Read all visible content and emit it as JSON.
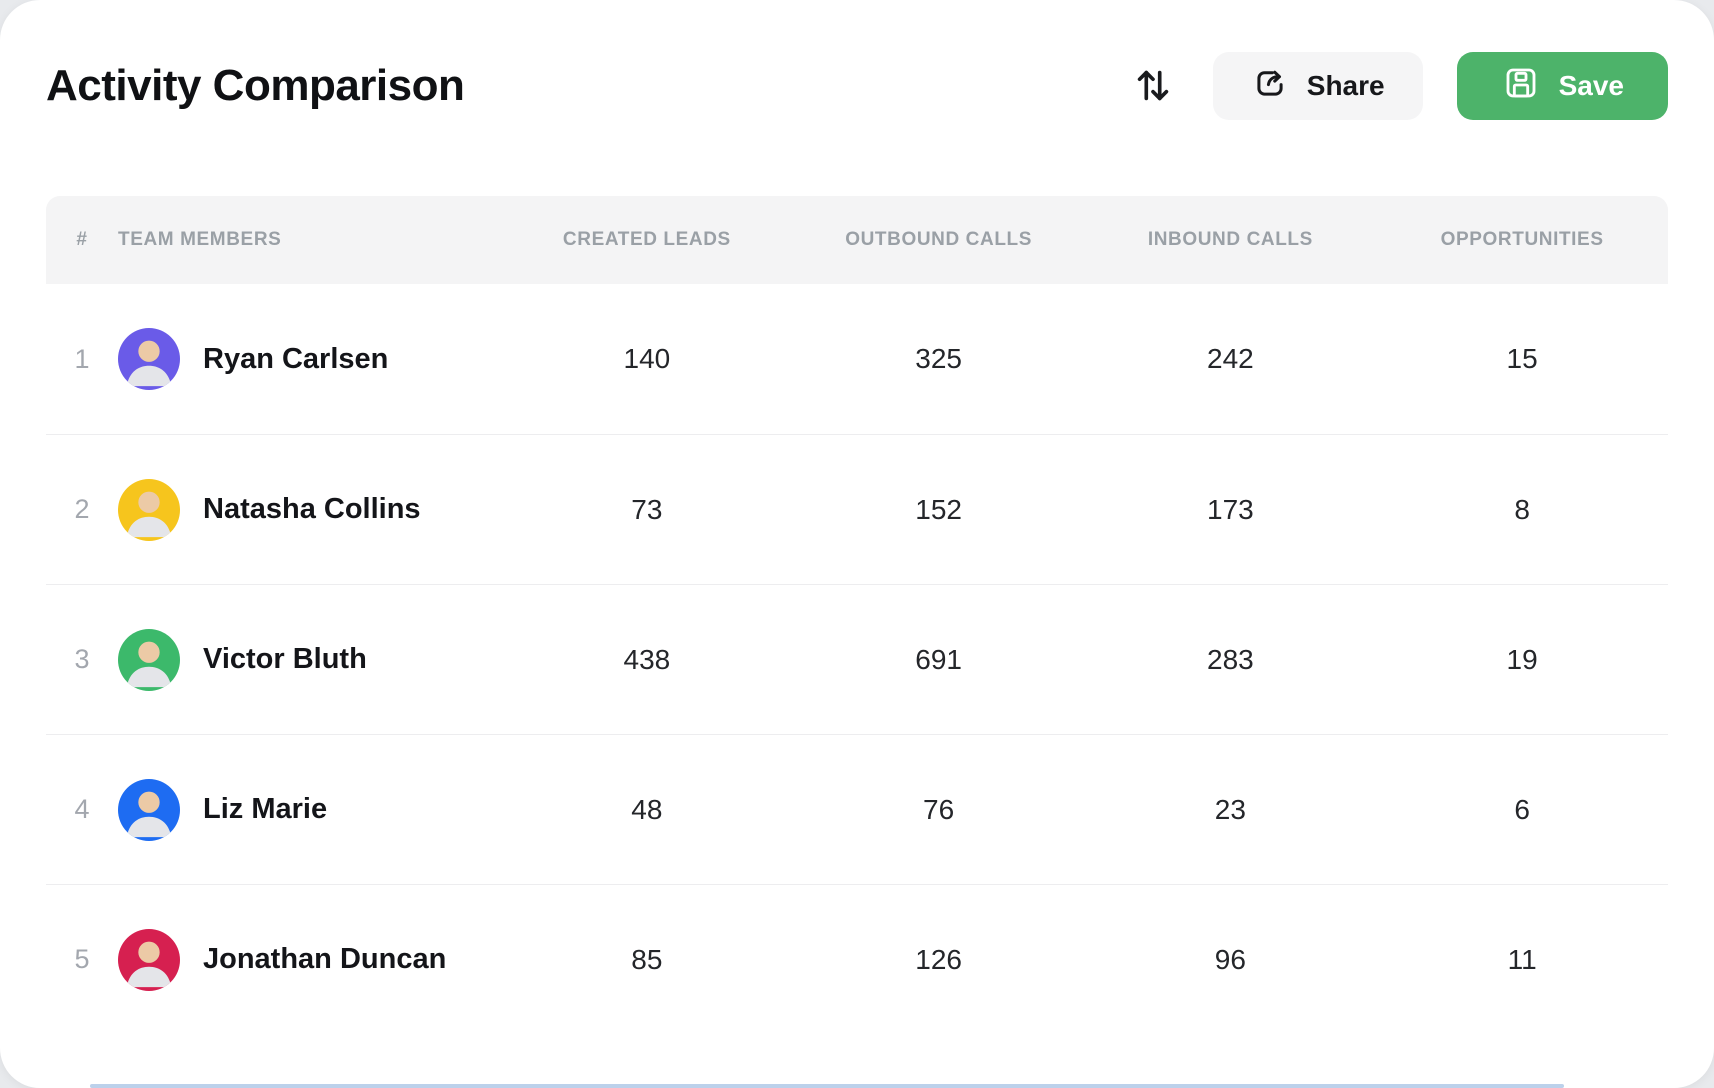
{
  "page": {
    "title": "Activity Comparison"
  },
  "toolbar": {
    "sort_icon": "sort-arrows-icon",
    "share": {
      "label": "Share",
      "icon": "share-icon"
    },
    "save": {
      "label": "Save",
      "icon": "save-floppy-icon"
    }
  },
  "colors": {
    "save_button_bg": "#4db36a",
    "share_button_bg": "#f5f5f6",
    "header_band_bg": "#f4f4f5",
    "header_text": "#9aa0a6"
  },
  "table": {
    "columns": [
      {
        "id": "rank",
        "label": "#",
        "align": "ac"
      },
      {
        "id": "team-members",
        "label": "TEAM MEMBERS",
        "align": "al"
      },
      {
        "id": "created-leads",
        "label": "CREATED LEADS",
        "align": "ac"
      },
      {
        "id": "outbound-calls",
        "label": "OUTBOUND CALLS",
        "align": "ac"
      },
      {
        "id": "inbound-calls",
        "label": "INBOUND CALLS",
        "align": "ac"
      },
      {
        "id": "opportunities",
        "label": "OPPORTUNITIES",
        "align": "ac"
      }
    ],
    "rows": [
      {
        "rank": "1",
        "name": "Ryan Carlsen",
        "avatar_color": "#6a5be8",
        "values": [
          "140",
          "325",
          "242",
          "15"
        ]
      },
      {
        "rank": "2",
        "name": "Natasha Collins",
        "avatar_color": "#f6c51d",
        "values": [
          "73",
          "152",
          "173",
          "8"
        ]
      },
      {
        "rank": "3",
        "name": "Victor Bluth",
        "avatar_color": "#3cb96b",
        "values": [
          "438",
          "691",
          "283",
          "19"
        ]
      },
      {
        "rank": "4",
        "name": "Liz Marie",
        "avatar_color": "#1e6cf2",
        "values": [
          "48",
          "76",
          "23",
          "6"
        ]
      },
      {
        "rank": "5",
        "name": "Jonathan Duncan",
        "avatar_color": "#d62050",
        "values": [
          "85",
          "126",
          "96",
          "11"
        ]
      }
    ]
  }
}
